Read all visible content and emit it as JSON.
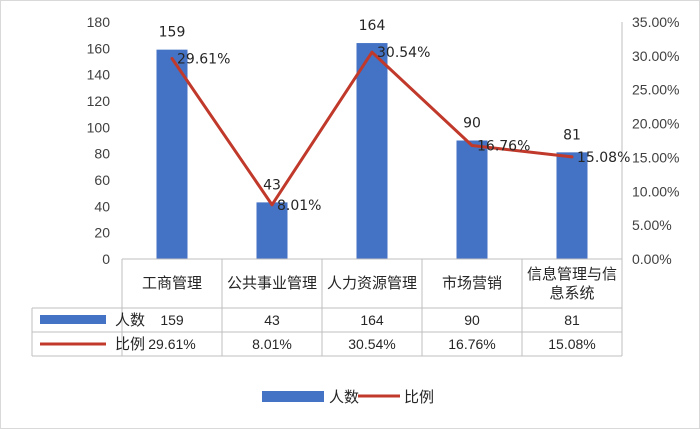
{
  "chart_data": {
    "type": "bar",
    "combo": "bar+line",
    "categories": [
      "工商管理",
      "公共事业管理",
      "人力资源管理",
      "市场营销",
      "信息管理与信息系统"
    ],
    "category_lines": [
      [
        "工商管理"
      ],
      [
        "公共事业管理"
      ],
      [
        "人力资源管理"
      ],
      [
        "市场营销"
      ],
      [
        "信息管理与信",
        "息系统"
      ]
    ],
    "series": [
      {
        "name": "人数",
        "type": "bar",
        "axis": "left",
        "color": "#4472c4",
        "values": [
          159,
          43,
          164,
          90,
          81
        ],
        "labels": [
          "159",
          "43",
          "164",
          "90",
          "81"
        ]
      },
      {
        "name": "比例",
        "type": "line",
        "axis": "right",
        "color": "#c0392b",
        "values": [
          29.61,
          8.01,
          30.54,
          16.76,
          15.08
        ],
        "labels": [
          "29.61%",
          "8.01%",
          "30.54%",
          "16.76%",
          "15.08%"
        ]
      }
    ],
    "y_left": {
      "min": 0,
      "max": 180,
      "step": 20,
      "ticks": [
        "0",
        "20",
        "40",
        "60",
        "80",
        "100",
        "120",
        "140",
        "160",
        "180"
      ]
    },
    "y_right": {
      "min": 0,
      "max": 35,
      "step": 5,
      "ticks": [
        "0.00%",
        "5.00%",
        "10.00%",
        "15.00%",
        "20.00%",
        "25.00%",
        "30.00%",
        "35.00%"
      ]
    },
    "data_table": true,
    "legend": {
      "position": "bottom",
      "entries": [
        "人数",
        "比例"
      ]
    },
    "grid": false
  }
}
